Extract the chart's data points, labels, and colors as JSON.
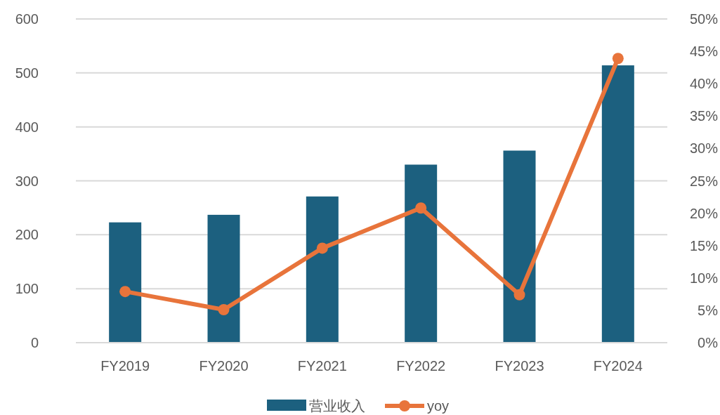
{
  "chart_data": {
    "type": "bar",
    "categories": [
      "FY2019",
      "FY2020",
      "FY2021",
      "FY2022",
      "FY2023",
      "FY2024"
    ],
    "series": [
      {
        "name": "营业收入",
        "color": "#1c607f",
        "values": [
          223,
          237,
          271,
          330,
          356,
          514
        ]
      },
      {
        "name": "yoy",
        "type": "line",
        "axis": "y2",
        "color": "#e8743b",
        "marker": "circle",
        "values": [
          7.9,
          5.1,
          14.6,
          20.8,
          7.4,
          43.9
        ]
      }
    ],
    "ylim": [
      0,
      600
    ],
    "yticks": [
      0,
      100,
      200,
      300,
      400,
      500,
      600
    ],
    "y2lim": [
      0,
      50
    ],
    "y2ticks": [
      {
        "value": 0,
        "label": "0%"
      },
      {
        "value": 5,
        "label": "5%"
      },
      {
        "value": 10,
        "label": "10%"
      },
      {
        "value": 15,
        "label": "15%"
      },
      {
        "value": 20,
        "label": "20%"
      },
      {
        "value": 25,
        "label": "25%"
      },
      {
        "value": 30,
        "label": "30%"
      },
      {
        "value": 35,
        "label": "35%"
      },
      {
        "value": 40,
        "label": "40%"
      },
      {
        "value": 45,
        "label": "45%"
      },
      {
        "value": 50,
        "label": "50%"
      }
    ],
    "grid": "y",
    "legend": "bottom"
  }
}
